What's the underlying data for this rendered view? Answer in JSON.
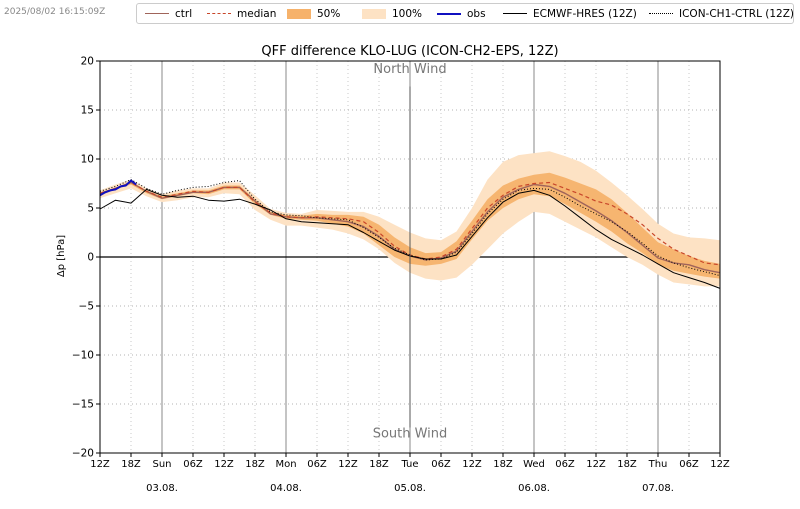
{
  "timestamp": "2025/08/02 16:15:09Z",
  "legend": [
    {
      "key": "ctrl",
      "label": "ctrl",
      "style": "line",
      "color": "#a0645a",
      "dash": ""
    },
    {
      "key": "median",
      "label": "median",
      "style": "line",
      "color": "#c8462a",
      "dash": "4,3"
    },
    {
      "key": "p50",
      "label": "50%",
      "style": "box",
      "color": "#f6b26b"
    },
    {
      "key": "p100",
      "label": "100%",
      "style": "box",
      "color": "#fde2c4"
    },
    {
      "key": "obs",
      "label": "obs",
      "style": "line",
      "color": "#1010c0",
      "dash": ""
    },
    {
      "key": "ecmwf",
      "label": "ECMWF-HRES (12Z)",
      "style": "line",
      "color": "#000000",
      "dash": ""
    },
    {
      "key": "ch1",
      "label": "ICON-CH1-CTRL (12Z)",
      "style": "line",
      "color": "#000000",
      "dash": "1,2"
    }
  ],
  "chart_data": {
    "type": "line",
    "title": "QFF difference KLO-LUG (ICON-CH2-EPS, 12Z)",
    "ylabel": "Δp [hPa]",
    "xlabel": "",
    "ylim": [
      -20,
      20
    ],
    "xlim": [
      0,
      120
    ],
    "yticks": [
      20,
      15,
      10,
      5,
      0,
      -5,
      -10,
      -15,
      -20
    ],
    "ytick_labels": [
      "20",
      "15",
      "10",
      "5",
      "0",
      "−5",
      "−10",
      "−15",
      "−20"
    ],
    "x_unit": "hours since 02.08. 12Z",
    "xticks": [
      {
        "x": 0,
        "label": "12Z"
      },
      {
        "x": 6,
        "label": "18Z"
      },
      {
        "x": 12,
        "label": "Sun",
        "sub": "03.08."
      },
      {
        "x": 18,
        "label": "06Z"
      },
      {
        "x": 24,
        "label": "12Z"
      },
      {
        "x": 30,
        "label": "18Z"
      },
      {
        "x": 36,
        "label": "Mon",
        "sub": "04.08."
      },
      {
        "x": 42,
        "label": "06Z"
      },
      {
        "x": 48,
        "label": "12Z"
      },
      {
        "x": 54,
        "label": "18Z"
      },
      {
        "x": 60,
        "label": "Tue",
        "sub": "05.08."
      },
      {
        "x": 66,
        "label": "06Z"
      },
      {
        "x": 72,
        "label": "12Z"
      },
      {
        "x": 78,
        "label": "18Z"
      },
      {
        "x": 84,
        "label": "Wed",
        "sub": "06.08."
      },
      {
        "x": 90,
        "label": "06Z"
      },
      {
        "x": 96,
        "label": "12Z"
      },
      {
        "x": 102,
        "label": "18Z"
      },
      {
        "x": 108,
        "label": "Thu",
        "sub": "07.08."
      },
      {
        "x": 114,
        "label": "06Z"
      },
      {
        "x": 120,
        "label": "12Z"
      }
    ],
    "day_boundaries": [
      12,
      36,
      60,
      84,
      108
    ],
    "grid": true,
    "annotations": [
      {
        "text": "North Wind",
        "x": 60,
        "y": 18.8
      },
      {
        "text": "South Wind",
        "x": 60,
        "y": -18.4
      }
    ],
    "north_south_divider": {
      "x": 60,
      "y_from": 17.4,
      "y_to": -17.4
    },
    "series": [
      {
        "name": "100%",
        "kind": "band",
        "x": [
          0,
          3,
          6,
          9,
          12,
          15,
          18,
          21,
          24,
          27,
          30,
          33,
          36,
          39,
          42,
          45,
          48,
          51,
          54,
          57,
          60,
          63,
          66,
          69,
          72,
          75,
          78,
          81,
          84,
          87,
          90,
          93,
          96,
          99,
          102,
          105,
          108,
          111,
          114,
          117,
          120
        ],
        "lower": [
          6.0,
          6.5,
          7.0,
          6.2,
          5.6,
          5.8,
          6.1,
          6.1,
          6.5,
          6.4,
          4.8,
          3.8,
          3.2,
          3.2,
          3.0,
          2.8,
          2.4,
          1.8,
          0.8,
          -0.6,
          -1.6,
          -2.2,
          -2.4,
          -2.1,
          -0.8,
          0.8,
          2.4,
          3.6,
          4.6,
          4.4,
          3.6,
          2.8,
          2.0,
          1.0,
          0.0,
          -0.8,
          -1.8,
          -2.6,
          -2.8,
          -3.0,
          -3.0
        ],
        "upper": [
          6.8,
          7.4,
          7.9,
          7.0,
          6.4,
          6.8,
          7.0,
          7.0,
          7.6,
          7.6,
          6.3,
          4.9,
          4.5,
          4.4,
          4.8,
          4.7,
          4.6,
          4.6,
          4.1,
          3.3,
          2.5,
          1.9,
          1.7,
          2.6,
          5.0,
          7.9,
          9.7,
          10.4,
          10.6,
          10.8,
          10.3,
          9.7,
          8.8,
          7.6,
          6.3,
          4.9,
          3.4,
          2.4,
          2.0,
          1.9,
          1.7
        ]
      },
      {
        "name": "50%",
        "kind": "band",
        "x": [
          0,
          3,
          6,
          9,
          12,
          15,
          18,
          21,
          24,
          27,
          30,
          33,
          36,
          39,
          42,
          45,
          48,
          51,
          54,
          57,
          60,
          63,
          66,
          69,
          72,
          75,
          78,
          81,
          84,
          87,
          90,
          93,
          96,
          99,
          102,
          105,
          108,
          111,
          114,
          117,
          120
        ],
        "lower": [
          6.3,
          6.9,
          7.4,
          6.5,
          5.9,
          6.2,
          6.5,
          6.4,
          6.9,
          6.9,
          5.4,
          4.3,
          3.9,
          3.8,
          3.7,
          3.4,
          3.1,
          2.4,
          1.2,
          0.0,
          -0.7,
          -0.9,
          -0.7,
          -0.2,
          1.8,
          3.7,
          5.0,
          5.9,
          6.4,
          6.2,
          5.4,
          4.5,
          3.6,
          2.6,
          1.4,
          0.4,
          -0.8,
          -1.4,
          -1.7,
          -2.0,
          -2.2
        ],
        "upper": [
          6.6,
          7.1,
          7.7,
          6.8,
          6.2,
          6.5,
          6.8,
          6.8,
          7.3,
          7.3,
          5.9,
          4.6,
          4.3,
          4.2,
          4.4,
          4.3,
          4.3,
          4.1,
          3.3,
          2.0,
          1.0,
          0.4,
          0.5,
          1.6,
          3.7,
          5.9,
          7.3,
          8.0,
          8.4,
          8.6,
          8.1,
          7.5,
          6.9,
          5.9,
          4.5,
          3.0,
          1.5,
          0.8,
          0.1,
          -0.4,
          -0.7
        ]
      },
      {
        "name": "ctrl",
        "kind": "line",
        "color": "#a0645a",
        "dash": "",
        "width": 1.4,
        "x": [
          0,
          3,
          6,
          9,
          12,
          15,
          18,
          21,
          24,
          27,
          30,
          33,
          36,
          39,
          42,
          45,
          48,
          51,
          54,
          57,
          60,
          63,
          66,
          69,
          72,
          75,
          78,
          81,
          84,
          87,
          90,
          93,
          96,
          99,
          102,
          105,
          108,
          111,
          114,
          117,
          120
        ],
        "y": [
          6.5,
          7.0,
          7.6,
          6.7,
          6.0,
          6.3,
          6.6,
          6.6,
          7.1,
          7.1,
          5.7,
          4.4,
          4.1,
          4.0,
          4.0,
          3.8,
          3.6,
          3.1,
          2.1,
          0.8,
          0.1,
          -0.3,
          -0.1,
          0.6,
          2.6,
          4.6,
          6.1,
          6.9,
          7.4,
          7.2,
          6.5,
          5.6,
          4.7,
          3.7,
          2.5,
          1.2,
          -0.1,
          -0.6,
          -0.8,
          -1.3,
          -1.6
        ]
      },
      {
        "name": "median",
        "kind": "line",
        "color": "#c8462a",
        "dash": "4,3",
        "width": 1.2,
        "x": [
          0,
          3,
          6,
          9,
          12,
          15,
          18,
          21,
          24,
          27,
          30,
          33,
          36,
          39,
          42,
          45,
          48,
          51,
          54,
          57,
          60,
          63,
          66,
          69,
          72,
          75,
          78,
          81,
          84,
          87,
          90,
          93,
          96,
          99,
          102,
          105,
          108,
          111,
          114,
          117,
          120
        ],
        "y": [
          6.5,
          7.0,
          7.6,
          6.7,
          6.1,
          6.4,
          6.7,
          6.6,
          7.1,
          7.1,
          5.6,
          4.5,
          4.1,
          4.0,
          4.1,
          4.0,
          3.9,
          3.6,
          2.5,
          1.1,
          0.2,
          -0.2,
          0.0,
          0.8,
          2.9,
          5.0,
          6.3,
          7.2,
          7.5,
          7.6,
          7.0,
          6.4,
          5.7,
          5.3,
          4.4,
          3.3,
          1.9,
          0.8,
          0.1,
          -0.6,
          -0.8
        ]
      },
      {
        "name": "ECMWF-HRES (12Z)",
        "kind": "line",
        "color": "#000000",
        "dash": "",
        "width": 1.0,
        "x": [
          0,
          3,
          6,
          9,
          12,
          15,
          18,
          21,
          24,
          27,
          30,
          33,
          36,
          39,
          42,
          45,
          48,
          51,
          54,
          57,
          60,
          63,
          66,
          69,
          72,
          75,
          78,
          81,
          84,
          87,
          90,
          93,
          96,
          99,
          102,
          105,
          108,
          111,
          114,
          117,
          120
        ],
        "y": [
          4.9,
          5.8,
          5.5,
          6.9,
          6.3,
          6.1,
          6.2,
          5.8,
          5.7,
          5.9,
          5.4,
          4.8,
          3.9,
          3.6,
          3.5,
          3.4,
          3.3,
          2.5,
          1.6,
          0.7,
          0.1,
          -0.2,
          -0.2,
          0.2,
          2.1,
          4.0,
          5.6,
          6.5,
          6.8,
          6.3,
          5.2,
          4.0,
          2.8,
          1.8,
          1.0,
          0.2,
          -0.7,
          -1.6,
          -2.1,
          -2.6,
          -3.2
        ]
      },
      {
        "name": "ICON-CH1-CTRL (12Z)",
        "kind": "line",
        "color": "#000000",
        "dash": "1,2",
        "width": 1.0,
        "x": [
          0,
          3,
          6,
          9,
          12,
          15,
          18,
          21,
          24,
          27,
          30,
          33,
          36,
          39,
          42,
          45,
          48,
          51,
          54,
          57,
          60,
          63,
          66,
          69,
          72,
          75,
          78,
          81,
          84,
          87,
          90,
          93,
          96,
          99,
          102,
          105,
          108,
          111,
          114,
          117,
          120
        ],
        "y": [
          6.7,
          7.2,
          7.9,
          7.0,
          6.4,
          6.8,
          7.1,
          7.2,
          7.6,
          7.8,
          5.9,
          4.6,
          4.3,
          4.2,
          4.0,
          3.9,
          3.8,
          3.0,
          2.0,
          0.9,
          0.2,
          -0.3,
          -0.2,
          0.5,
          2.4,
          4.4,
          5.9,
          6.8,
          7.0,
          6.9,
          6.1,
          5.2,
          4.4,
          3.6,
          2.6,
          1.4,
          0.1,
          -0.6,
          -1.1,
          -1.5,
          -1.9
        ]
      },
      {
        "name": "obs",
        "kind": "line",
        "color": "#1010c0",
        "dash": "",
        "width": 2.0,
        "x": [
          0,
          1,
          2,
          3,
          4,
          5,
          6,
          7
        ],
        "y": [
          6.3,
          6.6,
          6.8,
          6.9,
          7.2,
          7.3,
          7.8,
          7.4
        ]
      }
    ]
  }
}
